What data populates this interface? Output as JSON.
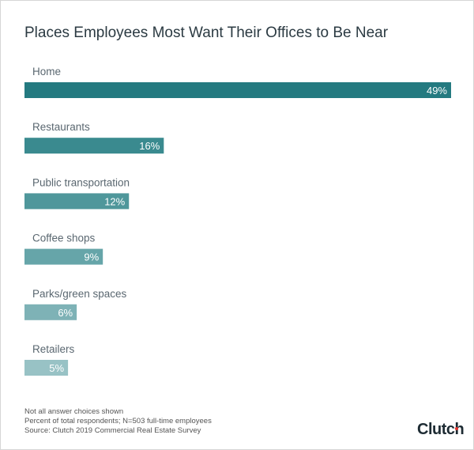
{
  "chart_data": {
    "type": "bar",
    "orientation": "horizontal",
    "title": "Places Employees Most Want Their Offices to Be Near",
    "categories": [
      "Home",
      "Restaurants",
      "Public transportation",
      "Coffee shops",
      "Parks/green spaces",
      "Retailers"
    ],
    "values": [
      49,
      16,
      12,
      9,
      6,
      5
    ],
    "value_labels": [
      "49%",
      "16%",
      "12%",
      "9%",
      "6%",
      "5%"
    ],
    "unit": "%",
    "xlim": [
      0,
      49
    ],
    "grid": false,
    "colors": [
      "#247a80",
      "#3a8a8f",
      "#4f979b",
      "#66a5a9",
      "#7eb2b6",
      "#98c2c5"
    ]
  },
  "footer": {
    "notes": [
      "Not all answer choices shown",
      "Percent of total respondents; N=503 full-time employees",
      "Source: Clutch 2019 Commercial Real Estate Survey"
    ],
    "logo": "Clutch"
  }
}
